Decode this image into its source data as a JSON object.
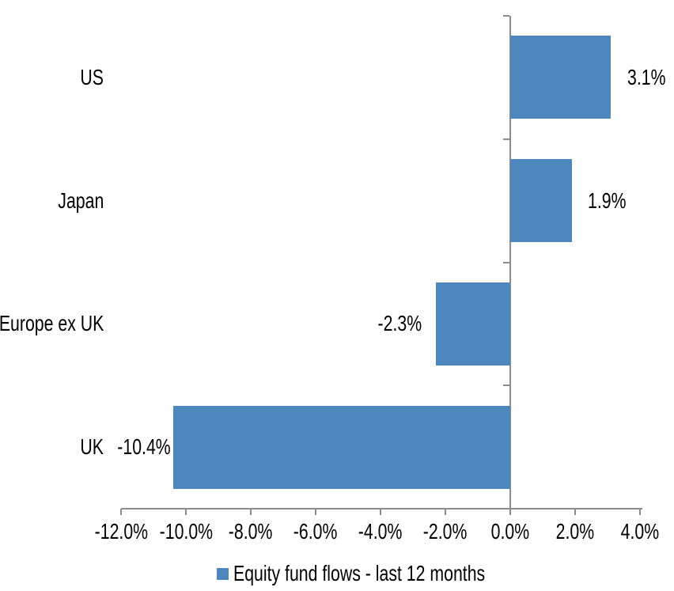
{
  "chart_data": {
    "type": "bar",
    "orientation": "horizontal",
    "title": "",
    "xlabel": "",
    "ylabel": "",
    "categories": [
      "US",
      "Japan",
      "Europe ex UK",
      "UK"
    ],
    "series": [
      {
        "name": "Equity fund flows - last 12 months",
        "values": [
          3.1,
          1.9,
          -2.3,
          -10.4
        ],
        "data_labels": [
          "3.1%",
          "1.9%",
          "-2.3%",
          "-10.4%"
        ]
      }
    ],
    "xlim": [
      -12,
      4
    ],
    "x_tick_values": [
      -12,
      -10,
      -8,
      -6,
      -4,
      -2,
      0,
      2,
      4
    ],
    "x_tick_labels": [
      "-12.0%",
      "-10.0%",
      "-8.0%",
      "-6.0%",
      "-4.0%",
      "-2.0%",
      "0.0%",
      "2.0%",
      "4.0%"
    ],
    "grid": false,
    "legend_position": "bottom",
    "colors": {
      "bar": "#4E87BE",
      "axis": "#8C8C8C",
      "text": "#000000",
      "background": "#FFFFFF"
    }
  }
}
